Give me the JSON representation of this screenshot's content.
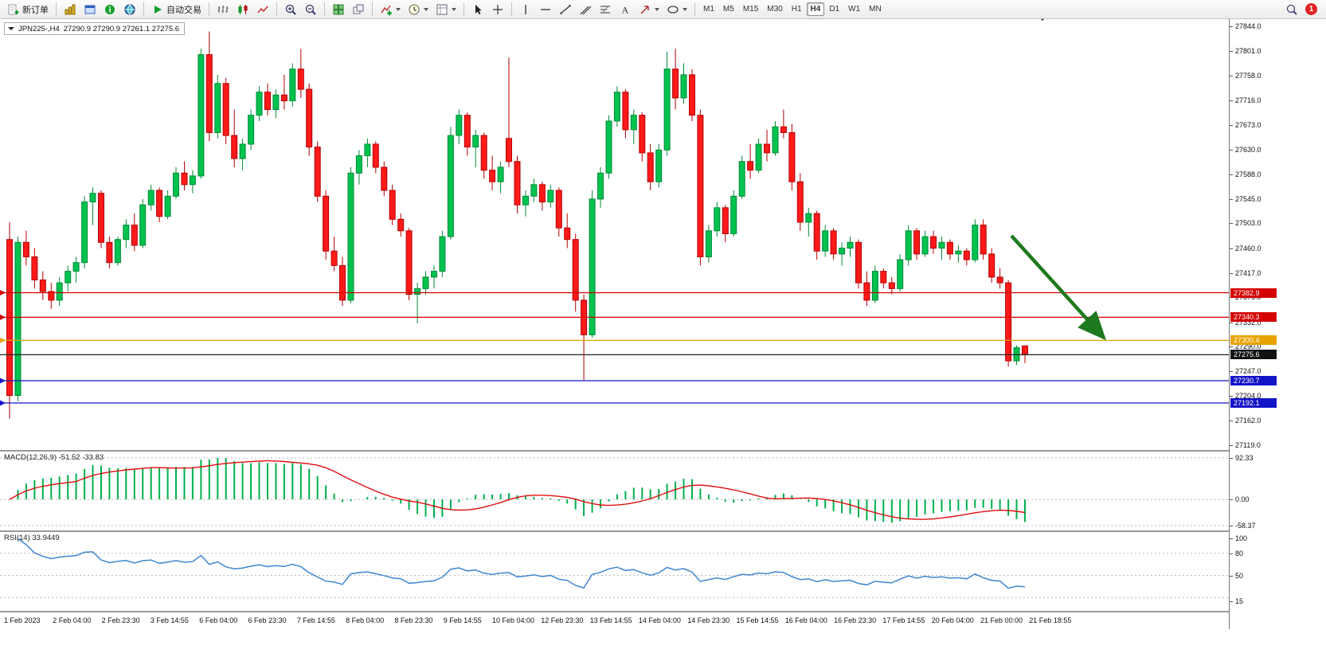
{
  "toolbar": {
    "new_order_label": "新订单",
    "auto_trading_label": "自动交易",
    "timeframes": [
      "M1",
      "M5",
      "M15",
      "M30",
      "H1",
      "H4",
      "D1",
      "W1",
      "MN"
    ],
    "active_timeframe": "H4",
    "notification_count": "1"
  },
  "header": {
    "symbol": "JPN225-,H4",
    "ohlc": "27290.9 27290.9 27261.1 27275.6"
  },
  "chart_data": {
    "type": "candlestick",
    "symbol": "JPN225-",
    "timeframe": "H4",
    "current_bar": {
      "open": 27290.9,
      "high": 27290.9,
      "low": 27261.1,
      "close": 27275.6
    },
    "ylim": [
      27119.0,
      27844.0
    ],
    "up_color": "#00C24E",
    "up_stroke": "#038A38",
    "down_color": "#FF1A1A",
    "down_stroke": "#B30000",
    "price_axis_labels": [
      "27844.0",
      "27801.0",
      "27758.0",
      "27716.0",
      "27673.0",
      "27630.0",
      "27588.0",
      "27545.0",
      "27503.0",
      "27460.0",
      "27417.0",
      "27375.0",
      "27332.0",
      "27290.0",
      "27247.0",
      "27204.0",
      "27162.0",
      "27119.0"
    ],
    "time_axis_labels": [
      "1 Feb 2023",
      "2 Feb 04:00",
      "2 Feb 23:30",
      "3 Feb 14:55",
      "6 Feb 04:00",
      "6 Feb 23:30",
      "7 Feb 14:55",
      "8 Feb 04:00",
      "8 Feb 23:30",
      "9 Feb 14:55",
      "10 Feb 04:00",
      "12 Feb 23:30",
      "13 Feb 14:55",
      "14 Feb 04:00",
      "14 Feb 23:30",
      "15 Feb 14:55",
      "16 Feb 04:00",
      "16 Feb 23:30",
      "17 Feb 14:55",
      "20 Feb 04:00",
      "21 Feb 00:00",
      "21 Feb 18:55"
    ],
    "levels": [
      {
        "price": 27382.9,
        "label": "27382.9",
        "color": "#D40000"
      },
      {
        "price": 27340.3,
        "label": "27340.3",
        "color": "#D40000"
      },
      {
        "price": 27300.4,
        "label": "27300.4",
        "color": "#E8A200"
      },
      {
        "price": 27230.7,
        "label": "27230.7",
        "color": "#1414C8"
      },
      {
        "price": 27192.1,
        "label": "27192.1",
        "color": "#1414C8"
      }
    ],
    "bid": {
      "price": 27275.6,
      "label": "27275.6",
      "color": "#111111"
    },
    "annotation_arrow": {
      "from": [
        1270,
        272
      ],
      "to": [
        1386,
        400
      ],
      "color": "#1E7A1E"
    },
    "indicators": {
      "macd": {
        "label": "MACD(12,26,9) -51.52 -33.83",
        "params": [
          12,
          26,
          9
        ],
        "value": -51.52,
        "signal": -33.83,
        "axis": [
          "92.33",
          "0.00",
          "-58.37"
        ],
        "range": [
          -58.37,
          92.33
        ],
        "histogram_color": "#00B050",
        "signal_color": "#E01010"
      },
      "rsi": {
        "label": "RSI(14) 33.9449",
        "period": 14,
        "value": 33.9449,
        "axis": [
          "100",
          "80",
          "50",
          "15"
        ],
        "levels": [
          80,
          50,
          20
        ],
        "range": [
          15,
          100
        ],
        "line_color": "#3E86D0"
      }
    },
    "candles": [
      [
        27475,
        27505,
        27165,
        27205
      ],
      [
        27205,
        27480,
        27195,
        27470
      ],
      [
        27470,
        27490,
        27430,
        27445
      ],
      [
        27445,
        27460,
        27390,
        27405
      ],
      [
        27405,
        27420,
        27370,
        27385
      ],
      [
        27385,
        27400,
        27355,
        27370
      ],
      [
        27370,
        27410,
        27360,
        27400
      ],
      [
        27400,
        27430,
        27385,
        27420
      ],
      [
        27420,
        27445,
        27400,
        27435
      ],
      [
        27435,
        27550,
        27425,
        27540
      ],
      [
        27540,
        27565,
        27500,
        27555
      ],
      [
        27555,
        27560,
        27460,
        27470
      ],
      [
        27470,
        27480,
        27425,
        27435
      ],
      [
        27435,
        27480,
        27430,
        27475
      ],
      [
        27475,
        27510,
        27460,
        27500
      ],
      [
        27500,
        27520,
        27455,
        27465
      ],
      [
        27465,
        27545,
        27460,
        27535
      ],
      [
        27535,
        27570,
        27525,
        27560
      ],
      [
        27560,
        27565,
        27505,
        27515
      ],
      [
        27515,
        27560,
        27510,
        27550
      ],
      [
        27550,
        27600,
        27545,
        27590
      ],
      [
        27590,
        27610,
        27560,
        27570
      ],
      [
        27570,
        27595,
        27555,
        27585
      ],
      [
        27585,
        27805,
        27580,
        27795
      ],
      [
        27795,
        27835,
        27645,
        27660
      ],
      [
        27660,
        27760,
        27650,
        27745
      ],
      [
        27745,
        27755,
        27640,
        27655
      ],
      [
        27655,
        27700,
        27600,
        27615
      ],
      [
        27615,
        27650,
        27595,
        27640
      ],
      [
        27640,
        27700,
        27630,
        27690
      ],
      [
        27690,
        27740,
        27680,
        27730
      ],
      [
        27730,
        27745,
        27690,
        27700
      ],
      [
        27700,
        27735,
        27685,
        27725
      ],
      [
        27725,
        27760,
        27700,
        27715
      ],
      [
        27715,
        27780,
        27705,
        27770
      ],
      [
        27770,
        27805,
        27720,
        27735
      ],
      [
        27735,
        27745,
        27620,
        27635
      ],
      [
        27635,
        27645,
        27540,
        27550
      ],
      [
        27550,
        27560,
        27440,
        27455
      ],
      [
        27455,
        27480,
        27420,
        27430
      ],
      [
        27430,
        27445,
        27360,
        27370
      ],
      [
        27370,
        27600,
        27365,
        27590
      ],
      [
        27590,
        27630,
        27570,
        27620
      ],
      [
        27620,
        27650,
        27600,
        27640
      ],
      [
        27640,
        27645,
        27590,
        27600
      ],
      [
        27600,
        27610,
        27550,
        27560
      ],
      [
        27560,
        27570,
        27500,
        27510
      ],
      [
        27510,
        27520,
        27480,
        27490
      ],
      [
        27490,
        27495,
        27370,
        27380
      ],
      [
        27380,
        27400,
        27330,
        27390
      ],
      [
        27390,
        27420,
        27380,
        27410
      ],
      [
        27410,
        27430,
        27390,
        27420
      ],
      [
        27420,
        27490,
        27410,
        27480
      ],
      [
        27480,
        27670,
        27475,
        27655
      ],
      [
        27655,
        27700,
        27640,
        27690
      ],
      [
        27690,
        27695,
        27620,
        27635
      ],
      [
        27635,
        27665,
        27600,
        27655
      ],
      [
        27655,
        27660,
        27580,
        27595
      ],
      [
        27595,
        27620,
        27560,
        27575
      ],
      [
        27575,
        27610,
        27555,
        27600
      ],
      [
        27650,
        27790,
        27600,
        27610
      ],
      [
        27610,
        27620,
        27520,
        27535
      ],
      [
        27535,
        27560,
        27515,
        27550
      ],
      [
        27550,
        27580,
        27540,
        27570
      ],
      [
        27570,
        27575,
        27525,
        27540
      ],
      [
        27540,
        27570,
        27530,
        27560
      ],
      [
        27560,
        27565,
        27480,
        27495
      ],
      [
        27495,
        27520,
        27460,
        27475
      ],
      [
        27475,
        27485,
        27350,
        27370
      ],
      [
        27370,
        27380,
        27230,
        27310
      ],
      [
        27310,
        27560,
        27305,
        27545
      ],
      [
        27545,
        27600,
        27530,
        27590
      ],
      [
        27590,
        27690,
        27580,
        27680
      ],
      [
        27680,
        27740,
        27670,
        27730
      ],
      [
        27730,
        27735,
        27650,
        27665
      ],
      [
        27665,
        27700,
        27640,
        27690
      ],
      [
        27690,
        27695,
        27610,
        27625
      ],
      [
        27625,
        27640,
        27560,
        27575
      ],
      [
        27575,
        27640,
        27565,
        27630
      ],
      [
        27630,
        27800,
        27620,
        27770
      ],
      [
        27770,
        27805,
        27700,
        27720
      ],
      [
        27720,
        27780,
        27710,
        27760
      ],
      [
        27760,
        27770,
        27680,
        27690
      ],
      [
        27690,
        27700,
        27430,
        27445
      ],
      [
        27445,
        27500,
        27435,
        27490
      ],
      [
        27490,
        27540,
        27480,
        27530
      ],
      [
        27530,
        27535,
        27470,
        27485
      ],
      [
        27485,
        27560,
        27480,
        27550
      ],
      [
        27550,
        27620,
        27545,
        27610
      ],
      [
        27610,
        27640,
        27580,
        27595
      ],
      [
        27595,
        27650,
        27590,
        27640
      ],
      [
        27640,
        27665,
        27610,
        27625
      ],
      [
        27625,
        27680,
        27620,
        27670
      ],
      [
        27670,
        27700,
        27650,
        27660
      ],
      [
        27660,
        27675,
        27560,
        27575
      ],
      [
        27575,
        27590,
        27490,
        27505
      ],
      [
        27505,
        27530,
        27480,
        27520
      ],
      [
        27520,
        27525,
        27440,
        27455
      ],
      [
        27455,
        27500,
        27445,
        27490
      ],
      [
        27490,
        27495,
        27440,
        27450
      ],
      [
        27450,
        27470,
        27430,
        27460
      ],
      [
        27460,
        27480,
        27445,
        27470
      ],
      [
        27470,
        27475,
        27390,
        27400
      ],
      [
        27400,
        27420,
        27360,
        27370
      ],
      [
        27370,
        27430,
        27365,
        27420
      ],
      [
        27420,
        27425,
        27390,
        27400
      ],
      [
        27400,
        27410,
        27380,
        27390
      ],
      [
        27390,
        27450,
        27385,
        27440
      ],
      [
        27440,
        27500,
        27430,
        27490
      ],
      [
        27490,
        27495,
        27440,
        27450
      ],
      [
        27450,
        27490,
        27445,
        27480
      ],
      [
        27480,
        27490,
        27450,
        27460
      ],
      [
        27460,
        27480,
        27440,
        27470
      ],
      [
        27470,
        27475,
        27440,
        27450
      ],
      [
        27450,
        27465,
        27435,
        27455
      ],
      [
        27455,
        27460,
        27430,
        27440
      ],
      [
        27440,
        27510,
        27435,
        27500
      ],
      [
        27500,
        27510,
        27440,
        27450
      ],
      [
        27450,
        27460,
        27400,
        27410
      ],
      [
        27410,
        27425,
        27390,
        27400
      ],
      [
        27400,
        27405,
        27255,
        27265
      ],
      [
        27265,
        27292,
        27258,
        27288
      ],
      [
        27290.9,
        27290.9,
        27261.1,
        27275.6
      ]
    ]
  }
}
